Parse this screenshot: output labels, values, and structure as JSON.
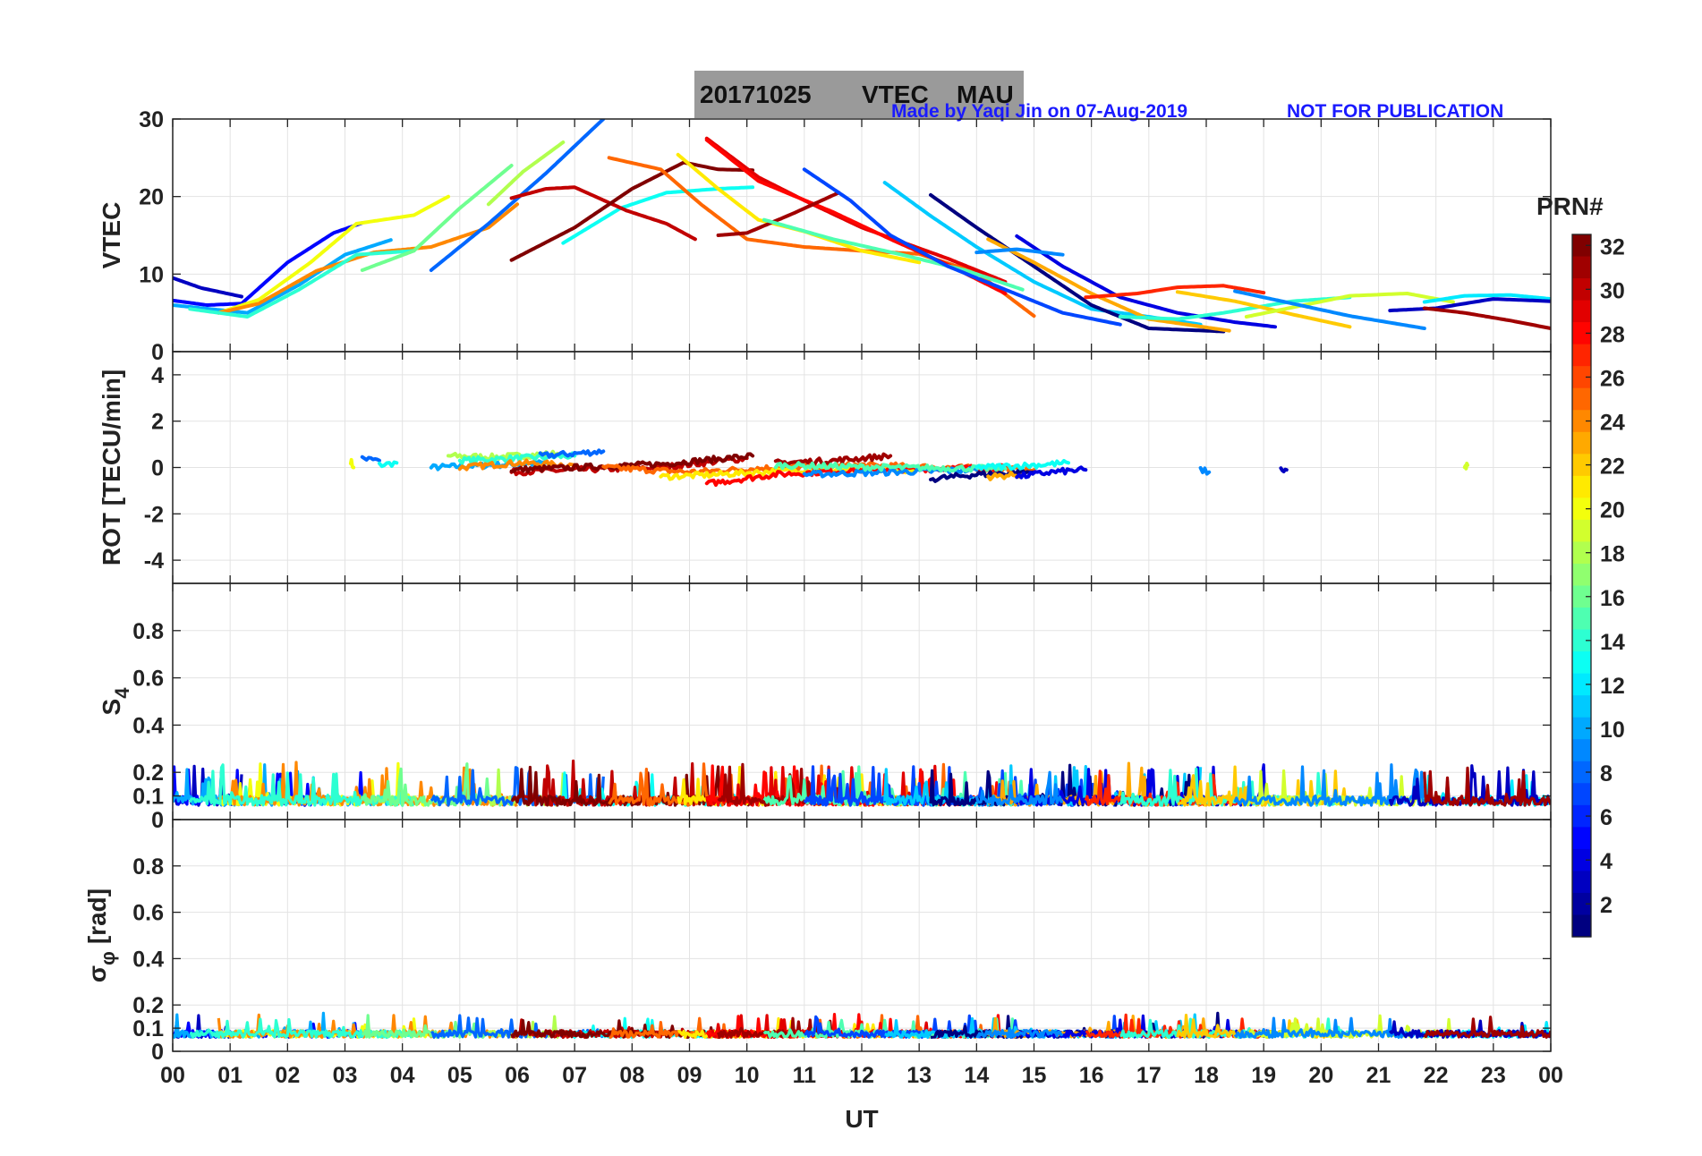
{
  "title": {
    "date": "20171025",
    "product": "VTEC",
    "station": "MAU"
  },
  "credit": {
    "author": "Made by Yaqi Jin on 07-Aug-2019",
    "notice": "NOT FOR PUBLICATION"
  },
  "colors": {
    "credit": "#1a1aff",
    "title_box": "#9a9a9a",
    "grid": "#e3e3e3"
  },
  "chart_data": {
    "type": "line",
    "xlabel": "UT",
    "x_ticks": [
      "00",
      "01",
      "02",
      "03",
      "04",
      "05",
      "06",
      "07",
      "08",
      "09",
      "10",
      "11",
      "12",
      "13",
      "14",
      "15",
      "16",
      "17",
      "18",
      "19",
      "20",
      "21",
      "22",
      "23",
      "00"
    ],
    "xlim": [
      0,
      24
    ],
    "colorbar": {
      "label": "PRN#",
      "range": [
        1,
        32
      ],
      "ticks": [
        "32",
        "30",
        "28",
        "26",
        "24",
        "22",
        "20",
        "18",
        "16",
        "14",
        "12",
        "10",
        "8",
        "6",
        "4",
        "2"
      ]
    },
    "panels": [
      {
        "name": "vtec",
        "ylabel": "VTEC",
        "ylim": [
          0,
          30
        ],
        "yticks": [
          "0",
          "10",
          "20",
          "30"
        ],
        "series": [
          {
            "prn": 3,
            "x": [
              0,
              0.5,
              1.2
            ],
            "y": [
              9.5,
              8.2,
              7.1
            ]
          },
          {
            "prn": 5,
            "x": [
              0,
              0.6,
              1.2,
              2.0,
              2.8,
              3.3
            ],
            "y": [
              6.6,
              6.0,
              6.2,
              11.5,
              15.3,
              16.6
            ]
          },
          {
            "prn": 10,
            "x": [
              0,
              1.3,
              2.2,
              3.0,
              3.8
            ],
            "y": [
              6.0,
              5.0,
              8.6,
              12.5,
              14.4
            ]
          },
          {
            "prn": 20,
            "x": [
              0.8,
              1.5,
              2.4,
              3.2,
              4.2,
              4.8
            ],
            "y": [
              5.0,
              6.7,
              11.5,
              16.5,
              17.6,
              20.0
            ]
          },
          {
            "prn": 24,
            "x": [
              0.8,
              1.5,
              2.5,
              3.5,
              4.5,
              5.5,
              6.0
            ],
            "y": [
              5.0,
              6.2,
              10.4,
              12.8,
              13.5,
              16.0,
              19.0
            ]
          },
          {
            "prn": 14,
            "x": [
              0.3,
              1.3,
              2.2,
              3.2,
              4.2
            ],
            "y": [
              5.5,
              4.5,
              8.0,
              12.5,
              13.0
            ]
          },
          {
            "prn": 16,
            "x": [
              3.3,
              4.2,
              5.0,
              5.9
            ],
            "y": [
              10.5,
              13.0,
              18.5,
              24.0
            ]
          },
          {
            "prn": 18,
            "x": [
              5.5,
              6.1,
              6.8
            ],
            "y": [
              19.0,
              23.2,
              27.0
            ]
          },
          {
            "prn": 8,
            "x": [
              4.5,
              5.5,
              6.5,
              7.5
            ],
            "y": [
              10.5,
              16.5,
              23.0,
              30.0
            ]
          },
          {
            "prn": 13,
            "x": [
              6.8,
              7.8,
              8.6,
              9.5,
              10.1
            ],
            "y": [
              14.0,
              18.5,
              20.5,
              21.0,
              21.2
            ]
          },
          {
            "prn": 30,
            "x": [
              5.9,
              6.5,
              7.0,
              7.9,
              8.6,
              9.1
            ],
            "y": [
              19.8,
              21.0,
              21.2,
              18.2,
              16.5,
              14.5
            ]
          },
          {
            "prn": 32,
            "x": [
              5.9,
              7.0,
              8.0,
              8.9,
              9.5,
              10.1
            ],
            "y": [
              11.8,
              16.0,
              21.0,
              24.4,
              23.5,
              23.4
            ]
          },
          {
            "prn": 25,
            "x": [
              7.6,
              8.5,
              9.2,
              10.0,
              11.0,
              12.0,
              13.0,
              14.0,
              15.0
            ],
            "y": [
              25.0,
              23.5,
              19.0,
              14.5,
              13.5,
              13.0,
              12.6,
              10.2,
              4.6
            ]
          },
          {
            "prn": 21,
            "x": [
              8.8,
              9.5,
              10.2,
              11.0,
              12.0,
              13.0
            ],
            "y": [
              25.4,
              21.0,
              17.0,
              15.5,
              13.0,
              11.5
            ]
          },
          {
            "prn": 29,
            "x": [
              9.3,
              10.2,
              11.0,
              12.0,
              13.5,
              14.5
            ],
            "y": [
              27.5,
              22.5,
              19.5,
              16.0,
              12.0,
              9.0
            ]
          },
          {
            "prn": 28,
            "x": [
              9.3,
              10.2,
              11.5,
              12.5,
              13.5,
              14.5
            ],
            "y": [
              27.3,
              22.0,
              18.0,
              14.5,
              11.2,
              7.5
            ]
          },
          {
            "prn": 31,
            "x": [
              9.5,
              10.0,
              10.8,
              11.6
            ],
            "y": [
              15.0,
              15.3,
              17.8,
              20.5
            ]
          },
          {
            "prn": 15,
            "x": [
              10.3,
              11.5,
              12.7,
              13.8,
              14.8
            ],
            "y": [
              17.0,
              14.5,
              12.5,
              10.5,
              8.0
            ]
          },
          {
            "prn": 7,
            "x": [
              11.0,
              11.8,
              12.5,
              13.5,
              14.5,
              15.5,
              16.5
            ],
            "y": [
              23.5,
              19.5,
              15.0,
              11.0,
              8.0,
              5.0,
              3.5
            ]
          },
          {
            "prn": 11,
            "x": [
              12.4,
              13.2,
              14.0,
              15.0,
              16.0,
              17.0,
              17.9
            ],
            "y": [
              21.8,
              17.5,
              13.5,
              9.0,
              5.5,
              4.5,
              3.5
            ]
          },
          {
            "prn": 1,
            "x": [
              13.2,
              14.0,
              15.0,
              16.0,
              17.0,
              18.3
            ],
            "y": [
              20.2,
              16.0,
              11.0,
              6.0,
              3.0,
              2.6
            ]
          },
          {
            "prn": 23,
            "x": [
              14.2,
              15.0,
              16.0,
              17.0,
              18.4
            ],
            "y": [
              14.5,
              11.5,
              7.5,
              4.2,
              2.7
            ]
          },
          {
            "prn": 4,
            "x": [
              14.7,
              15.5,
              16.5,
              17.5,
              18.5,
              19.2
            ],
            "y": [
              14.9,
              11.0,
              7.0,
              5.0,
              3.8,
              3.2
            ]
          },
          {
            "prn": 9,
            "x": [
              14.0,
              14.7,
              15.5
            ],
            "y": [
              12.8,
              13.2,
              12.5
            ]
          },
          {
            "prn": 27,
            "x": [
              15.9,
              16.8,
              17.5,
              18.3,
              19.0
            ],
            "y": [
              7.0,
              7.5,
              8.3,
              8.5,
              7.6
            ]
          },
          {
            "prn": 14,
            "x": [
              16.5,
              17.5,
              18.3,
              19.5,
              20.5
            ],
            "y": [
              4.5,
              4.2,
              5.0,
              6.5,
              7.0
            ]
          },
          {
            "prn": 22,
            "x": [
              17.5,
              18.5,
              19.5,
              20.5
            ],
            "y": [
              7.7,
              6.5,
              4.8,
              3.2
            ]
          },
          {
            "prn": 19,
            "x": [
              18.7,
              19.5,
              20.5,
              21.5,
              22.3
            ],
            "y": [
              4.5,
              5.7,
              7.2,
              7.5,
              6.4
            ]
          },
          {
            "prn": 9,
            "x": [
              18.5,
              19.5,
              20.5,
              21.8
            ],
            "y": [
              7.8,
              6.2,
              4.6,
              3.0
            ]
          },
          {
            "prn": 12,
            "x": [
              21.8,
              22.5,
              23.3,
              24.0
            ],
            "y": [
              6.4,
              7.2,
              7.3,
              6.8
            ]
          },
          {
            "prn": 3,
            "x": [
              21.2,
              22.0,
              23.0,
              24.0
            ],
            "y": [
              5.3,
              5.6,
              6.8,
              6.5
            ]
          },
          {
            "prn": 31,
            "x": [
              21.8,
              22.5,
              23.3,
              24.0
            ],
            "y": [
              5.6,
              5.0,
              4.0,
              3.0
            ]
          }
        ]
      },
      {
        "name": "rot",
        "ylabel": "ROT [TECU/min]",
        "ylim": [
          -5,
          5
        ],
        "yticks": [
          "-4",
          "-2",
          "0",
          "2",
          "4"
        ],
        "series": [
          {
            "prn": 20,
            "x": [
              3.1,
              3.15
            ],
            "y": [
              0.3,
              0.0
            ]
          },
          {
            "prn": 8,
            "x": [
              3.3,
              3.6
            ],
            "y": [
              0.4,
              0.3
            ]
          },
          {
            "prn": 13,
            "x": [
              3.6,
              3.9
            ],
            "y": [
              0.1,
              0.2
            ]
          },
          {
            "prn": 10,
            "x": [
              4.5,
              5.5,
              6.5
            ],
            "y": [
              0.0,
              0.1,
              0.2
            ]
          },
          {
            "prn": 18,
            "x": [
              4.8,
              5.6,
              6.7
            ],
            "y": [
              0.5,
              0.45,
              0.6
            ]
          },
          {
            "prn": 14,
            "x": [
              5.0,
              6.0,
              7.0
            ],
            "y": [
              0.3,
              0.4,
              0.5
            ]
          },
          {
            "prn": 8,
            "x": [
              6.4,
              7.0,
              7.5
            ],
            "y": [
              0.5,
              0.6,
              0.7
            ]
          },
          {
            "prn": 24,
            "x": [
              5.0,
              6.0,
              7.0
            ],
            "y": [
              0.0,
              0.2,
              0.1
            ]
          },
          {
            "prn": 30,
            "x": [
              5.9,
              7.0,
              8.5,
              10.0
            ],
            "y": [
              -0.2,
              -0.1,
              0.0,
              0.4
            ]
          },
          {
            "prn": 32,
            "x": [
              5.9,
              7.0,
              8.5,
              10.1
            ],
            "y": [
              -0.1,
              0.0,
              0.15,
              0.5
            ]
          },
          {
            "prn": 25,
            "x": [
              7.5,
              9.0,
              10.5,
              12.0,
              13.5,
              15.0
            ],
            "y": [
              0.0,
              -0.2,
              0.0,
              0.1,
              0.0,
              -0.1
            ]
          },
          {
            "prn": 21,
            "x": [
              8.5,
              9.5,
              11.0,
              13.0
            ],
            "y": [
              -0.4,
              -0.3,
              -0.1,
              -0.1
            ]
          },
          {
            "prn": 28,
            "x": [
              9.3,
              10.5,
              12.0,
              14.5
            ],
            "y": [
              -0.7,
              -0.3,
              -0.1,
              0.0
            ]
          },
          {
            "prn": 31,
            "x": [
              10.5,
              11.5,
              12.5
            ],
            "y": [
              0.2,
              0.3,
              0.5
            ]
          },
          {
            "prn": 9,
            "x": [
              11.0,
              12.5,
              14.0
            ],
            "y": [
              -0.3,
              -0.2,
              -0.1
            ]
          },
          {
            "prn": 15,
            "x": [
              10.5,
              12.5,
              14.5
            ],
            "y": [
              0.1,
              0.0,
              -0.05
            ]
          },
          {
            "prn": 1,
            "x": [
              13.2,
              14.0,
              15.0
            ],
            "y": [
              -0.5,
              -0.3,
              -0.2
            ]
          },
          {
            "prn": 23,
            "x": [
              14.2,
              14.8
            ],
            "y": [
              -0.4,
              -0.3
            ]
          },
          {
            "prn": 4,
            "x": [
              14.7,
              15.3,
              15.9
            ],
            "y": [
              -0.4,
              -0.2,
              -0.1
            ]
          },
          {
            "prn": 13,
            "x": [
              14.0,
              15.0,
              15.6
            ],
            "y": [
              0.0,
              0.1,
              0.2
            ]
          },
          {
            "prn": 9,
            "x": [
              17.9,
              18.05
            ],
            "y": [
              -0.1,
              -0.2
            ]
          },
          {
            "prn": 3,
            "x": [
              19.3,
              19.4
            ],
            "y": [
              -0.1,
              -0.1
            ]
          },
          {
            "prn": 19,
            "x": [
              22.5,
              22.55
            ],
            "y": [
              0.0,
              0.1
            ]
          }
        ]
      },
      {
        "name": "s4",
        "ylabel": "S",
        "ylabel_sub": "4",
        "ylim": [
          0,
          1
        ],
        "yticks": [
          "0",
          "0.1",
          "0.2",
          "0.4",
          "0.6",
          "0.8"
        ],
        "series": []
      },
      {
        "name": "sigma_phi",
        "ylabel": "σ",
        "ylabel_sub": "φ",
        "ylabel_unit": "[rad]",
        "ylim": [
          0,
          1
        ],
        "yticks": [
          "0",
          "0.1",
          "0.2",
          "0.4",
          "0.6",
          "0.8"
        ],
        "series": []
      }
    ]
  }
}
